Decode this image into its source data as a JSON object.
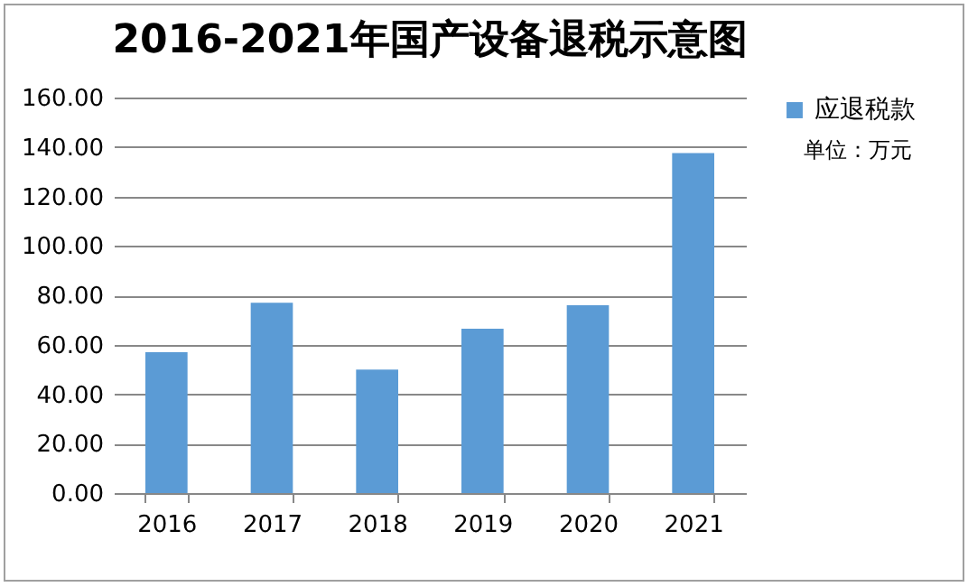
{
  "chart_data": {
    "type": "bar",
    "title": "2016-2021年国产设备退税示意图",
    "categories": [
      "2016",
      "2017",
      "2018",
      "2019",
      "2020",
      "2021"
    ],
    "series": [
      {
        "name": "应退税款",
        "color": "#5b9bd5",
        "values": [
          57,
          77,
          50,
          66.5,
          76,
          137.5
        ]
      }
    ],
    "ylim": [
      0,
      160
    ],
    "yticks": [
      {
        "value": 0,
        "label": "0.00"
      },
      {
        "value": 20,
        "label": "20.00"
      },
      {
        "value": 40,
        "label": "40.00"
      },
      {
        "value": 60,
        "label": "60.00"
      },
      {
        "value": 80,
        "label": "80.00"
      },
      {
        "value": 100,
        "label": "100.00"
      },
      {
        "value": 120,
        "label": "120.00"
      },
      {
        "value": 140,
        "label": "140.00"
      },
      {
        "value": 160,
        "label": "160.00"
      }
    ],
    "grid": "y",
    "legend": "right",
    "annotations": [
      "单位：万元"
    ]
  }
}
